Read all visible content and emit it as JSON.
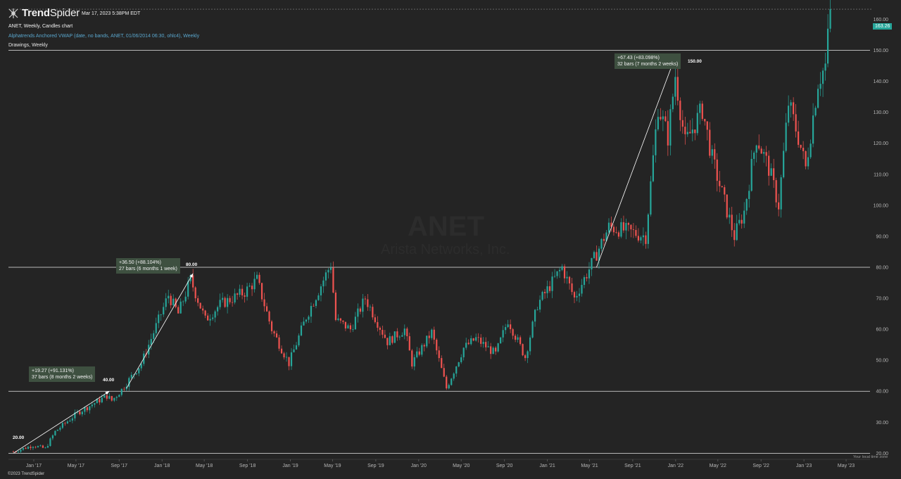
{
  "app": {
    "name_bold": "Trend",
    "name_regular": "Spider",
    "timestamp": "Mar 17, 2023 5:38PM EDT",
    "copyright": "©2023 TrendSpider"
  },
  "legend": {
    "line1": "ANET, Weekly, Candles chart",
    "line2": "Alphatrends Anchored VWAP (date, no bands, ANET, 01/06/2014 06:30, ohlc4), Weekly",
    "line3": "Drawings, Weekly"
  },
  "watermark": {
    "symbol": "ANET",
    "company": "Arista Networks, Inc."
  },
  "timezone_note": "Your local time zone",
  "last_price": "163.26",
  "annotations": [
    {
      "change": "+19.27 (+91.131%)",
      "bars": "37 bars (8 months 2 weeks)"
    },
    {
      "change": "+36.50 (+88.104%)",
      "bars": "27 bars (6 months 1 week)"
    },
    {
      "change": "+67.43 (+83.098%)",
      "bars": "32 bars (7 months 2 weeks)"
    }
  ],
  "levels": [
    {
      "label": "20.00",
      "value": 20
    },
    {
      "label": "40.00",
      "value": 40
    },
    {
      "label": "80.00",
      "value": 80
    },
    {
      "label": "150.00",
      "value": 150
    }
  ],
  "colors": {
    "background": "#242424",
    "up": "#26a69a",
    "down": "#ef5350",
    "label_bg": "#3e5040",
    "axis_text": "#b5b5b5"
  },
  "chart_data": {
    "type": "candlestick",
    "title": "ANET, Weekly, Candles chart",
    "ylim": [
      16,
      166
    ],
    "y_ticks": [
      20,
      30,
      40,
      50,
      60,
      70,
      80,
      90,
      100,
      110,
      120,
      130,
      140,
      150,
      160
    ],
    "y_tick_labels": [
      "20.00",
      "30.00",
      "40.00",
      "50.00",
      "60.00",
      "70.00",
      "80.00",
      "90.00",
      "100.00",
      "110.00",
      "120.00",
      "130.00",
      "140.00",
      "150.00",
      "160.00"
    ],
    "x_ticks": [
      "Jan '17",
      "May '17",
      "Sep '17",
      "Jan '18",
      "May '18",
      "Sep '18",
      "Jan '19",
      "May '19",
      "Sep '19",
      "Jan '20",
      "May '20",
      "Sep '20",
      "Jan '21",
      "May '21",
      "Sep '21",
      "Jan '22",
      "May '22",
      "Sep '22",
      "Jan '23",
      "May '23"
    ],
    "price_path": [
      [
        "2016-11-04",
        20.5
      ],
      [
        "2016-12-30",
        22.5
      ],
      [
        "2017-02-03",
        21.5
      ],
      [
        "2017-03-03",
        27
      ],
      [
        "2017-05-05",
        33
      ],
      [
        "2017-07-28",
        38.5
      ],
      [
        "2017-08-11",
        37
      ],
      [
        "2017-09-08",
        40.5
      ],
      [
        "2017-11-03",
        49
      ],
      [
        "2018-01-19",
        71
      ],
      [
        "2018-02-16",
        65
      ],
      [
        "2018-03-23",
        76
      ],
      [
        "2018-05-04",
        63
      ],
      [
        "2018-06-15",
        68
      ],
      [
        "2018-08-24",
        72
      ],
      [
        "2018-09-28",
        76
      ],
      [
        "2018-11-09",
        60
      ],
      [
        "2018-12-28",
        49
      ],
      [
        "2019-02-15",
        64
      ],
      [
        "2019-04-26",
        81
      ],
      [
        "2019-05-10",
        63
      ],
      [
        "2019-06-21",
        60
      ],
      [
        "2019-08-02",
        70
      ],
      [
        "2019-10-04",
        56
      ],
      [
        "2019-11-22",
        60
      ],
      [
        "2019-12-13",
        49
      ],
      [
        "2020-02-07",
        59
      ],
      [
        "2020-03-20",
        41
      ],
      [
        "2020-05-08",
        54
      ],
      [
        "2020-06-12",
        57
      ],
      [
        "2020-08-07",
        52
      ],
      [
        "2020-09-11",
        63
      ],
      [
        "2020-10-30",
        51
      ],
      [
        "2020-12-04",
        68
      ],
      [
        "2021-02-12",
        80
      ],
      [
        "2021-03-19",
        70
      ],
      [
        "2021-05-07",
        81
      ],
      [
        "2021-06-25",
        93
      ],
      [
        "2021-08-06",
        92
      ],
      [
        "2021-10-08",
        90
      ],
      [
        "2021-11-12",
        132
      ],
      [
        "2021-12-10",
        122
      ],
      [
        "2021-12-31",
        142
      ],
      [
        "2022-01-28",
        120
      ],
      [
        "2022-03-18",
        131
      ],
      [
        "2022-04-15",
        115
      ],
      [
        "2022-05-20",
        101
      ],
      [
        "2022-06-17",
        90
      ],
      [
        "2022-07-15",
        98
      ],
      [
        "2022-08-19",
        122
      ],
      [
        "2022-09-23",
        112
      ],
      [
        "2022-10-21",
        100
      ],
      [
        "2022-11-18",
        133
      ],
      [
        "2022-12-16",
        122
      ],
      [
        "2023-01-06",
        112
      ],
      [
        "2023-02-10",
        140
      ],
      [
        "2023-03-03",
        145
      ],
      [
        "2023-03-17",
        163.26
      ]
    ],
    "measures": [
      {
        "from": [
          "2016-11-04",
          20
        ],
        "to": [
          "2017-08-04",
          40
        ],
        "change": "+19.27 (+91.131%)"
      },
      {
        "from": [
          "2017-09-22",
          41
        ],
        "to": [
          "2018-03-30",
          78
        ],
        "change": "+36.50 (+88.104%)"
      },
      {
        "from": [
          "2021-05-21",
          80
        ],
        "to": [
          "2021-12-31",
          148
        ],
        "change": "+67.43 (+83.098%)"
      }
    ],
    "horizontal_levels": [
      20,
      40,
      80,
      150
    ]
  }
}
